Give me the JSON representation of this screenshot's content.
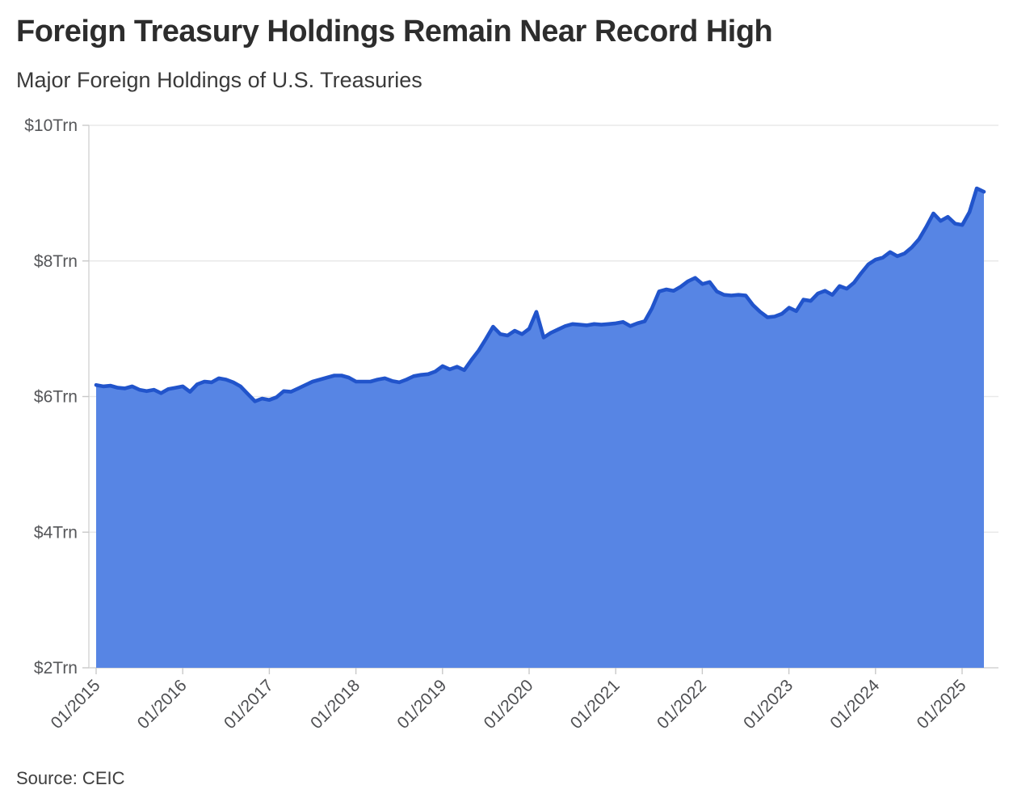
{
  "header": {
    "title": "Foreign Treasury Holdings Remain Near Record High",
    "subtitle": "Major Foreign Holdings of U.S. Treasuries"
  },
  "footer": {
    "source": "Source: CEIC"
  },
  "chart_data": {
    "type": "area",
    "title": "Foreign Treasury Holdings Remain Near Record High",
    "subtitle": "Major Foreign Holdings of U.S. Treasuries",
    "source": "Source: CEIC",
    "unit": "USD trillions",
    "frequency": "monthly",
    "x_start": "01/2015",
    "x_end": "04/2025",
    "x_tick_labels": [
      "01/2015",
      "01/2016",
      "01/2017",
      "01/2018",
      "01/2019",
      "01/2020",
      "01/2021",
      "01/2022",
      "01/2023",
      "01/2024",
      "01/2025"
    ],
    "y_tick_labels": [
      "$2Trn",
      "$4Trn",
      "$6Trn",
      "$8Trn",
      "$10Trn"
    ],
    "y_tick_values": [
      2,
      4,
      6,
      8,
      10
    ],
    "ylim": [
      2,
      10
    ],
    "grid": "horizontal",
    "legend": "none",
    "series": [
      {
        "name": "Major Foreign Holdings of U.S. Treasuries",
        "values": [
          6.17,
          6.15,
          6.16,
          6.13,
          6.12,
          6.15,
          6.1,
          6.08,
          6.1,
          6.05,
          6.11,
          6.13,
          6.15,
          6.07,
          6.18,
          6.22,
          6.21,
          6.27,
          6.25,
          6.21,
          6.15,
          6.04,
          5.93,
          5.97,
          5.95,
          5.99,
          6.08,
          6.07,
          6.12,
          6.17,
          6.22,
          6.25,
          6.28,
          6.31,
          6.31,
          6.28,
          6.22,
          6.22,
          6.22,
          6.25,
          6.27,
          6.23,
          6.21,
          6.25,
          6.3,
          6.32,
          6.33,
          6.37,
          6.45,
          6.4,
          6.44,
          6.39,
          6.54,
          6.68,
          6.85,
          7.03,
          6.92,
          6.9,
          6.97,
          6.92,
          7.0,
          7.25,
          6.87,
          6.94,
          6.99,
          7.04,
          7.07,
          7.06,
          7.05,
          7.07,
          7.06,
          7.07,
          7.08,
          7.1,
          7.04,
          7.08,
          7.11,
          7.3,
          7.55,
          7.58,
          7.56,
          7.62,
          7.7,
          7.75,
          7.66,
          7.69,
          7.55,
          7.5,
          7.49,
          7.5,
          7.49,
          7.35,
          7.25,
          7.17,
          7.18,
          7.22,
          7.31,
          7.26,
          7.43,
          7.41,
          7.52,
          7.56,
          7.5,
          7.63,
          7.59,
          7.68,
          7.82,
          7.95,
          8.02,
          8.05,
          8.13,
          8.07,
          8.11,
          8.2,
          8.32,
          8.5,
          8.7,
          8.59,
          8.65,
          8.55,
          8.53,
          8.72,
          9.07,
          9.02
        ]
      }
    ],
    "colors": {
      "area_fill": "#5785e4",
      "line": "#2154cb",
      "grid": "#e9e9e9",
      "axis": "#d6d6d6",
      "tick": "#c9c9c9",
      "title_text": "#2d2d2d",
      "tick_text": "#56575a"
    }
  }
}
